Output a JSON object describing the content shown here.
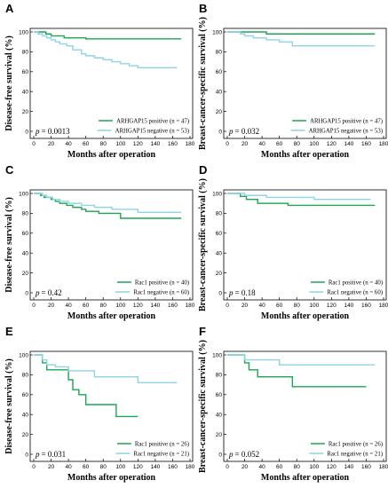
{
  "colors": {
    "positive": "#1aa653",
    "negative": "#8fd3e6",
    "axis": "#000000",
    "box": "#000000"
  },
  "chart_data": [
    {
      "panel": "A",
      "type": "line",
      "step": true,
      "xlabel": "Months after operation",
      "ylabel": "Disease-free survival (%)",
      "xlim": [
        0,
        180
      ],
      "ylim": [
        0,
        100
      ],
      "xticks": [
        0,
        20,
        40,
        60,
        80,
        100,
        120,
        140,
        160,
        180
      ],
      "yticks": [
        0,
        20,
        40,
        60,
        80,
        100
      ],
      "p_prefix": "p",
      "p_value": "= 0.0013",
      "series": [
        {
          "name": "ARHGAP15 positive",
          "n_label": "(n = 47)",
          "role": "positive",
          "x": [
            0,
            14,
            20,
            35,
            60,
            170
          ],
          "y": [
            100,
            98,
            96,
            94,
            93,
            93
          ]
        },
        {
          "name": "ARHGAP15 negative",
          "n_label": "(n = 53)",
          "role": "negative",
          "x": [
            0,
            5,
            10,
            15,
            20,
            25,
            30,
            38,
            45,
            55,
            60,
            70,
            80,
            90,
            100,
            110,
            120,
            165
          ],
          "y": [
            100,
            98,
            96,
            94,
            92,
            90,
            88,
            86,
            82,
            78,
            76,
            74,
            72,
            70,
            68,
            66,
            64,
            64
          ]
        }
      ]
    },
    {
      "panel": "B",
      "type": "line",
      "step": true,
      "xlabel": "Months after operation",
      "ylabel": "Breast-cancer-specific survival (%)",
      "xlim": [
        0,
        180
      ],
      "ylim": [
        0,
        100
      ],
      "xticks": [
        0,
        20,
        40,
        60,
        80,
        100,
        120,
        140,
        160,
        180
      ],
      "yticks": [
        0,
        20,
        40,
        60,
        80,
        100
      ],
      "p_prefix": "p",
      "p_value": "= 0.032",
      "series": [
        {
          "name": "ARHGAP15 positive",
          "n_label": "(n = 47)",
          "role": "positive",
          "x": [
            0,
            45,
            170
          ],
          "y": [
            100,
            98,
            98
          ]
        },
        {
          "name": "ARHGAP15 negative",
          "n_label": "(n = 53)",
          "role": "negative",
          "x": [
            0,
            15,
            20,
            30,
            45,
            60,
            75,
            170
          ],
          "y": [
            100,
            98,
            96,
            94,
            92,
            90,
            86,
            86
          ]
        }
      ]
    },
    {
      "panel": "C",
      "type": "line",
      "step": true,
      "xlabel": "Months after operation",
      "ylabel": "Disease-free survival (%)",
      "xlim": [
        0,
        180
      ],
      "ylim": [
        0,
        100
      ],
      "xticks": [
        0,
        20,
        40,
        60,
        80,
        100,
        120,
        140,
        160,
        180
      ],
      "yticks": [
        0,
        20,
        40,
        60,
        80,
        100
      ],
      "p_prefix": "p",
      "p_value": "= 0.42",
      "series": [
        {
          "name": "Rac1 positive",
          "n_label": "(n = 40)",
          "role": "positive",
          "x": [
            0,
            8,
            12,
            20,
            25,
            30,
            38,
            45,
            55,
            60,
            75,
            100,
            170
          ],
          "y": [
            100,
            98,
            96,
            94,
            92,
            90,
            88,
            86,
            84,
            82,
            80,
            75,
            75
          ]
        },
        {
          "name": "Rac1 negative",
          "n_label": "(n = 60)",
          "role": "negative",
          "x": [
            0,
            10,
            15,
            22,
            30,
            40,
            55,
            70,
            90,
            120,
            170
          ],
          "y": [
            100,
            98,
            96,
            94,
            92,
            90,
            88,
            86,
            84,
            81,
            81
          ]
        }
      ]
    },
    {
      "panel": "D",
      "type": "line",
      "step": true,
      "xlabel": "Months after operation",
      "ylabel": "Breast-cancer-specific survival (%)",
      "xlim": [
        0,
        180
      ],
      "ylim": [
        0,
        100
      ],
      "xticks": [
        0,
        20,
        40,
        60,
        80,
        100,
        120,
        140,
        160,
        180
      ],
      "yticks": [
        0,
        20,
        40,
        60,
        80,
        100
      ],
      "p_prefix": "p",
      "p_value": "= 0.18",
      "series": [
        {
          "name": "Rac1 positive",
          "n_label": "(n = 40)",
          "role": "positive",
          "x": [
            0,
            15,
            22,
            35,
            70,
            170
          ],
          "y": [
            100,
            97,
            94,
            90,
            88,
            88
          ]
        },
        {
          "name": "Rac1 negative",
          "n_label": "(n = 60)",
          "role": "negative",
          "x": [
            0,
            20,
            45,
            100,
            165
          ],
          "y": [
            100,
            98,
            96,
            94,
            94
          ]
        }
      ]
    },
    {
      "panel": "E",
      "type": "line",
      "step": true,
      "xlabel": "Months after operation",
      "ylabel": "Disease-free survival (%)",
      "xlim": [
        0,
        180
      ],
      "ylim": [
        0,
        100
      ],
      "xticks": [
        0,
        20,
        40,
        60,
        80,
        100,
        120,
        140,
        160,
        180
      ],
      "yticks": [
        0,
        20,
        40,
        60,
        80,
        100
      ],
      "p_prefix": "p",
      "p_value": "= 0.031",
      "series": [
        {
          "name": "Rac1 positive",
          "n_label": "(n = 26)",
          "role": "positive",
          "x": [
            0,
            10,
            15,
            30,
            40,
            45,
            52,
            60,
            95,
            120
          ],
          "y": [
            100,
            92,
            85,
            85,
            75,
            65,
            60,
            50,
            38,
            38
          ]
        },
        {
          "name": "Rac1 negative",
          "n_label": "(n = 21)",
          "role": "negative",
          "x": [
            0,
            10,
            15,
            25,
            40,
            70,
            120,
            165
          ],
          "y": [
            100,
            95,
            90,
            88,
            84,
            78,
            72,
            72
          ]
        }
      ]
    },
    {
      "panel": "F",
      "type": "line",
      "step": true,
      "xlabel": "Months after operation",
      "ylabel": "Breast-cancer-specific survival (%)",
      "xlim": [
        0,
        180
      ],
      "ylim": [
        0,
        100
      ],
      "xticks": [
        0,
        20,
        40,
        60,
        80,
        100,
        120,
        140,
        160,
        180
      ],
      "yticks": [
        0,
        20,
        40,
        60,
        80,
        100
      ],
      "p_prefix": "p",
      "p_value": "= 0.052",
      "series": [
        {
          "name": "Rac1 positive",
          "n_label": "(n = 26)",
          "role": "positive",
          "x": [
            0,
            20,
            25,
            35,
            75,
            160
          ],
          "y": [
            100,
            92,
            85,
            78,
            68,
            68
          ]
        },
        {
          "name": "Rac1 negative",
          "n_label": "(n = 21)",
          "role": "negative",
          "x": [
            0,
            20,
            60,
            170
          ],
          "y": [
            100,
            95,
            90,
            90
          ]
        }
      ]
    }
  ]
}
